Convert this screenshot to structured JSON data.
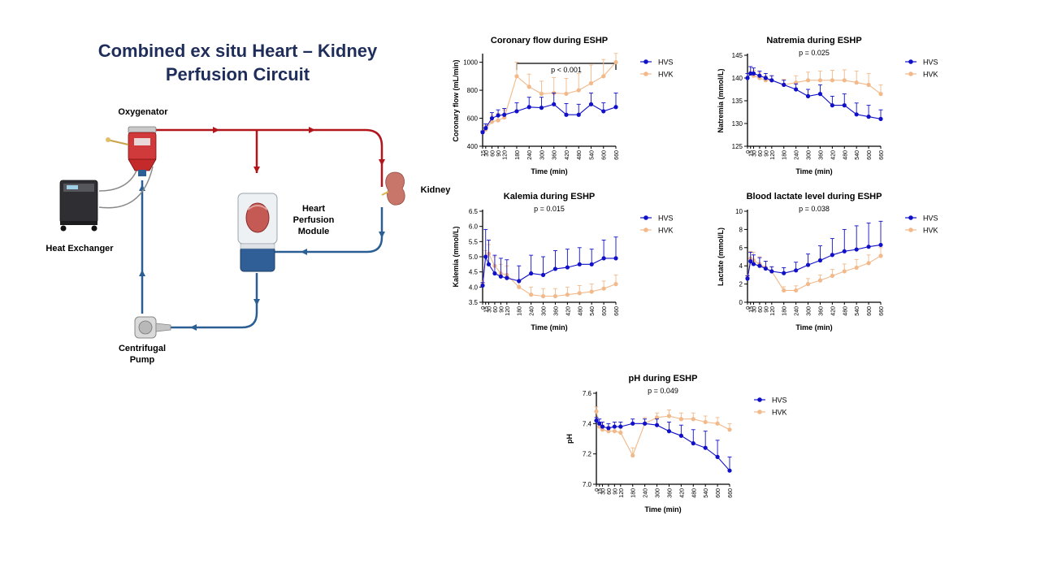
{
  "diagram": {
    "title_line1": "Combined ex situ Heart – Kidney",
    "title_line2": "Perfusion Circuit",
    "labels": {
      "oxygenator": "Oxygenator",
      "heat_exchanger": "Heat Exchanger",
      "kidney": "Kidney",
      "heart_module_1": "Heart",
      "heart_module_2": "Perfusion",
      "heart_module_3": "Module",
      "pump_1": "Centrifugal",
      "pump_2": "Pump"
    },
    "colors": {
      "arterial": "#b2151b",
      "venous": "#2b5f93"
    }
  },
  "series_colors": {
    "HVS": "#1010c8",
    "HVK": "#f2b98a"
  },
  "chart_data": [
    {
      "id": "coronary",
      "type": "line",
      "title": "Coronary flow during ESHP",
      "xlabel": "Time (min)",
      "ylabel": "Coronary flow (mL/min)",
      "x": [
        15,
        30,
        60,
        90,
        120,
        180,
        240,
        300,
        360,
        420,
        480,
        540,
        600,
        660
      ],
      "xticks": [
        "15",
        "30",
        "60",
        "90",
        "120",
        "180",
        "240",
        "300",
        "360",
        "420",
        "480",
        "540",
        "600",
        "660"
      ],
      "ylim": [
        400,
        1050
      ],
      "yticks": [
        400,
        600,
        800,
        1000
      ],
      "annotation": "p < 0.001",
      "series": [
        {
          "name": "HVS",
          "values": [
            500,
            530,
            600,
            620,
            625,
            650,
            680,
            675,
            700,
            625,
            625,
            700,
            650,
            680
          ],
          "err": [
            10,
            30,
            40,
            40,
            45,
            60,
            70,
            75,
            80,
            80,
            75,
            80,
            60,
            100
          ]
        },
        {
          "name": "HVK",
          "values": [
            500,
            520,
            575,
            585,
            605,
            900,
            825,
            775,
            780,
            775,
            800,
            850,
            900,
            1000
          ],
          "err": [
            10,
            30,
            45,
            50,
            55,
            100,
            90,
            90,
            110,
            110,
            120,
            130,
            120,
            210
          ]
        }
      ]
    },
    {
      "id": "natremia",
      "type": "line",
      "title": "Natremia during ESHP",
      "xlabel": "Time (min)",
      "ylabel": "Natremia (mmol/L)",
      "x": [
        0,
        15,
        30,
        60,
        90,
        120,
        180,
        240,
        300,
        360,
        420,
        480,
        540,
        600,
        660
      ],
      "xticks": [
        "0",
        "15",
        "30",
        "60",
        "90",
        "120",
        "180",
        "240",
        "300",
        "360",
        "420",
        "480",
        "540",
        "600",
        "660"
      ],
      "ylim": [
        125,
        145
      ],
      "yticks": [
        125,
        130,
        135,
        140,
        145
      ],
      "annotation": "p = 0.025",
      "series": [
        {
          "name": "HVS",
          "values": [
            140,
            141,
            141,
            140.5,
            140,
            139.5,
            138.5,
            137.5,
            136,
            136.5,
            134,
            134,
            132,
            131.5,
            131
          ],
          "err": [
            1,
            1.5,
            1.2,
            1,
            1,
            1,
            1,
            1.2,
            1.5,
            2,
            2,
            2.5,
            2.5,
            2.5,
            2
          ]
        },
        {
          "name": "HVK",
          "values": [
            140,
            141,
            140.5,
            140,
            139.5,
            139.5,
            138.5,
            139,
            139.5,
            139.5,
            139.5,
            139.5,
            139,
            138.5,
            136.5
          ],
          "err": [
            1,
            1.5,
            1.2,
            1.2,
            1,
            1,
            1.2,
            1.5,
            1.8,
            2,
            2.2,
            2.3,
            2.5,
            2.5,
            2
          ]
        }
      ]
    },
    {
      "id": "kalemia",
      "type": "line",
      "title": "Kalemia during ESHP",
      "xlabel": "Time (min)",
      "ylabel": "Kalemia (mmol/L)",
      "x": [
        0,
        15,
        30,
        60,
        90,
        120,
        180,
        240,
        300,
        360,
        420,
        480,
        540,
        600,
        660
      ],
      "xticks": [
        "0",
        "15",
        "30",
        "60",
        "90",
        "120",
        "180",
        "240",
        "300",
        "360",
        "420",
        "480",
        "540",
        "600",
        "660"
      ],
      "ylim": [
        3.5,
        6.5
      ],
      "yticks": [
        3.5,
        4.0,
        4.5,
        5.0,
        5.5,
        6.0,
        6.5
      ],
      "ytickfmt": 1,
      "annotation": "p = 0.015",
      "series": [
        {
          "name": "HVS",
          "values": [
            4.05,
            5.0,
            4.75,
            4.45,
            4.35,
            4.3,
            4.2,
            4.45,
            4.4,
            4.6,
            4.65,
            4.75,
            4.75,
            4.95,
            4.95
          ],
          "err": [
            0.1,
            0.9,
            0.8,
            0.6,
            0.6,
            0.6,
            0.5,
            0.6,
            0.6,
            0.6,
            0.6,
            0.55,
            0.5,
            0.6,
            0.7
          ]
        },
        {
          "name": "HVK",
          "values": [
            4.1,
            5.0,
            5.1,
            4.7,
            4.45,
            4.4,
            4.0,
            3.75,
            3.7,
            3.7,
            3.75,
            3.8,
            3.85,
            3.95,
            4.1
          ],
          "err": [
            0.1,
            0.2,
            0.3,
            0.3,
            0.3,
            0.3,
            0.2,
            0.25,
            0.25,
            0.25,
            0.25,
            0.25,
            0.25,
            0.25,
            0.3
          ]
        }
      ]
    },
    {
      "id": "lactate",
      "type": "line",
      "title": "Blood lactate level during ESHP",
      "xlabel": "Time (min)",
      "ylabel": "Lactate (mmol/L)",
      "x": [
        0,
        15,
        30,
        60,
        90,
        120,
        180,
        240,
        300,
        360,
        420,
        480,
        540,
        600,
        660
      ],
      "xticks": [
        "0",
        "15",
        "30",
        "60",
        "90",
        "120",
        "180",
        "240",
        "300",
        "360",
        "420",
        "480",
        "540",
        "600",
        "660"
      ],
      "ylim": [
        0,
        10
      ],
      "yticks": [
        0,
        2,
        4,
        6,
        8,
        10
      ],
      "annotation": "p = 0.038",
      "series": [
        {
          "name": "HVS",
          "values": [
            2.6,
            4.5,
            4.2,
            4.0,
            3.7,
            3.4,
            3.2,
            3.5,
            4.1,
            4.6,
            5.2,
            5.6,
            5.8,
            6.1,
            6.3
          ],
          "err": [
            0.3,
            1.0,
            1.0,
            0.9,
            0.8,
            0.5,
            0.6,
            0.9,
            1.2,
            1.6,
            1.8,
            2.4,
            2.6,
            2.6,
            2.6
          ]
        },
        {
          "name": "HVK",
          "values": [
            2.7,
            4.8,
            4.6,
            4.2,
            3.8,
            3.4,
            1.3,
            1.3,
            2.0,
            2.4,
            2.9,
            3.4,
            3.8,
            4.3,
            5.1
          ],
          "err": [
            0.3,
            0.8,
            0.9,
            0.8,
            0.7,
            0.5,
            0.4,
            0.5,
            0.6,
            0.6,
            0.7,
            0.8,
            0.9,
            0.9,
            0.9
          ]
        }
      ]
    },
    {
      "id": "ph",
      "type": "line",
      "title": "pH during ESHP",
      "xlabel": "Time (min)",
      "ylabel": "pH",
      "x": [
        0,
        15,
        30,
        60,
        90,
        120,
        180,
        240,
        300,
        360,
        420,
        480,
        540,
        600,
        660
      ],
      "xticks": [
        "0",
        "15",
        "30",
        "60",
        "90",
        "120",
        "180",
        "240",
        "300",
        "360",
        "420",
        "480",
        "540",
        "600",
        "660"
      ],
      "ylim": [
        7.0,
        7.6
      ],
      "yticks": [
        7.0,
        7.2,
        7.4,
        7.6
      ],
      "ytickfmt": 1,
      "annotation": "p = 0.049",
      "series": [
        {
          "name": "HVS",
          "values": [
            7.42,
            7.4,
            7.38,
            7.37,
            7.38,
            7.38,
            7.4,
            7.4,
            7.39,
            7.35,
            7.32,
            7.27,
            7.24,
            7.18,
            7.09
          ],
          "err": [
            0.02,
            0.03,
            0.03,
            0.03,
            0.03,
            0.03,
            0.03,
            0.03,
            0.04,
            0.06,
            0.07,
            0.09,
            0.11,
            0.11,
            0.09
          ]
        },
        {
          "name": "HVK",
          "values": [
            7.48,
            7.38,
            7.36,
            7.35,
            7.35,
            7.34,
            7.19,
            7.4,
            7.44,
            7.45,
            7.43,
            7.43,
            7.41,
            7.4,
            7.36
          ],
          "err": [
            0.03,
            0.03,
            0.03,
            0.03,
            0.03,
            0.03,
            0.05,
            0.04,
            0.03,
            0.04,
            0.04,
            0.04,
            0.04,
            0.04,
            0.04
          ]
        }
      ]
    }
  ]
}
